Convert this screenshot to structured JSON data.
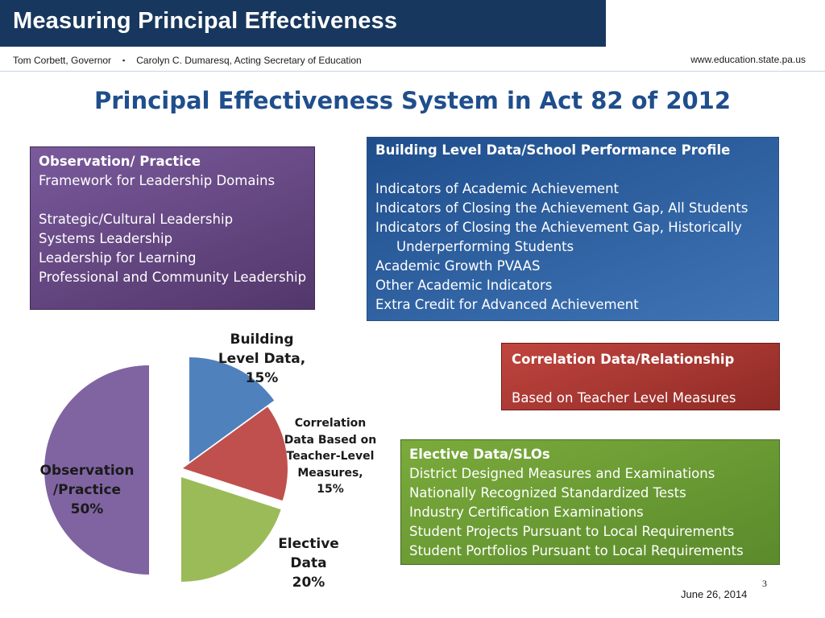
{
  "header": {
    "title": "Measuring Principal Effectiveness",
    "governor": "Tom Corbett, Governor",
    "bullet": "▪",
    "secretary": "Carolyn C. Dumaresq, Acting Secretary of Education",
    "url": "www.education.state.pa.us"
  },
  "slide": {
    "title": "Principal Effectiveness System in Act 82 of 2012",
    "page_number": "3",
    "date": "June 26, 2014"
  },
  "boxes": {
    "observation": {
      "heading": "Observation/ Practice",
      "sub": "Framework for Leadership Domains",
      "items": [
        "Strategic/Cultural Leadership",
        "Systems Leadership",
        "Leadership for Learning",
        "Professional and Community Leadership"
      ],
      "color": "#644680"
    },
    "building": {
      "heading": "Building Level Data/School Performance Profile",
      "items": [
        "Indicators of Academic Achievement",
        "Indicators of Closing the Achievement Gap, All Students",
        "Indicators of Closing the Achievement Gap, Historically",
        "Underperforming Students",
        "Academic Growth PVAAS",
        "Other Academic Indicators",
        "Extra Credit for Advanced Achievement"
      ],
      "color": "#2e62a2"
    },
    "correlation": {
      "heading": "Correlation Data/Relationship",
      "sub": "Based on Teacher Level Measures",
      "color": "#a53630"
    },
    "elective": {
      "heading": "Elective Data/SLOs",
      "items": [
        "District Designed Measures and Examinations",
        "Nationally Recognized Standardized Tests",
        "Industry Certification Examinations",
        "Student Projects Pursuant to Local Requirements",
        "Student Portfolios Pursuant to Local Requirements"
      ],
      "color": "#6b9b35"
    }
  },
  "chart_data": {
    "type": "pie",
    "title": "",
    "slices": [
      {
        "label_lines": [
          "Building",
          "Level Data,",
          "15%"
        ],
        "value": 15,
        "color": "#4f81bd"
      },
      {
        "label_lines": [
          "Correlation",
          "Data Based on",
          "Teacher-Level",
          "Measures,",
          "15%"
        ],
        "value": 15,
        "color": "#c0504d"
      },
      {
        "label_lines": [
          "Elective",
          "Data",
          "20%"
        ],
        "value": 20,
        "color": "#9bbb59"
      },
      {
        "label_lines": [
          "Observation",
          "/Practice",
          "50%"
        ],
        "value": 50,
        "color": "#8064a2"
      }
    ],
    "exploded": true
  }
}
